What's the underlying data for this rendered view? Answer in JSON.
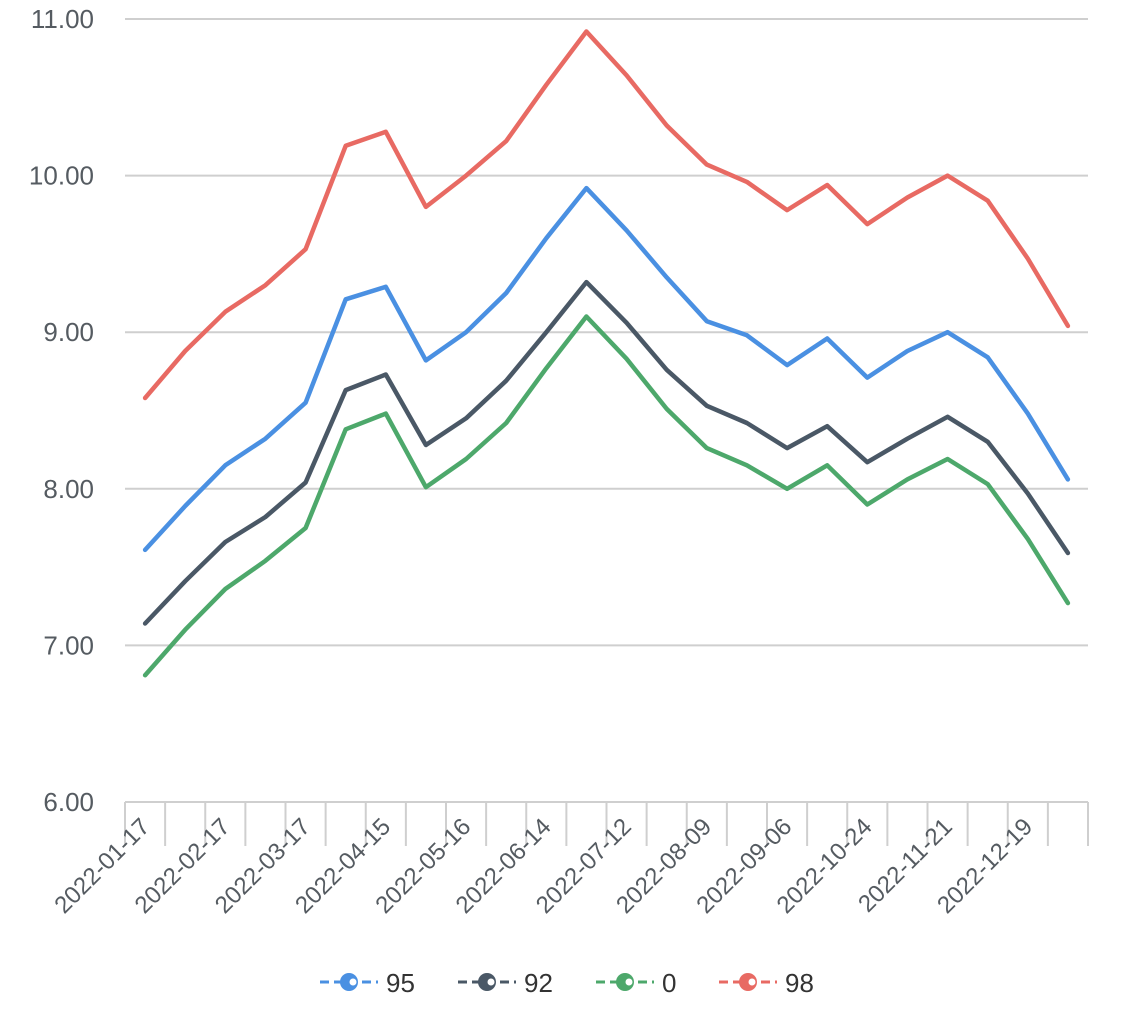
{
  "chart_data": {
    "type": "line",
    "x": [
      "2022-01-17",
      "",
      "2022-02-17",
      "",
      "2022-03-17",
      "",
      "2022-04-15",
      "",
      "2022-05-16",
      "",
      "2022-06-14",
      "",
      "2022-07-12",
      "",
      "2022-08-09",
      "",
      "2022-09-06",
      "",
      "2022-10-24",
      "",
      "2022-11-21",
      "",
      "2022-12-19",
      ""
    ],
    "x_tick_labels": [
      "2022-01-17",
      "2022-02-17",
      "2022-03-17",
      "2022-04-15",
      "2022-05-16",
      "2022-06-14",
      "2022-07-12",
      "2022-08-09",
      "2022-09-06",
      "2022-10-24",
      "2022-11-21",
      "2022-12-19"
    ],
    "y_ticks": [
      "6.00",
      "7.00",
      "8.00",
      "9.00",
      "10.00",
      "11.00"
    ],
    "ylim": [
      6,
      11
    ],
    "grid": true,
    "legend_position": "bottom",
    "series": [
      {
        "name": "95",
        "color": "#4a90e2",
        "values": [
          7.61,
          7.89,
          8.15,
          8.32,
          8.55,
          9.21,
          9.29,
          8.82,
          9.0,
          9.25,
          9.6,
          9.92,
          9.65,
          9.35,
          9.07,
          8.98,
          8.79,
          8.96,
          8.71,
          8.88,
          9.0,
          8.84,
          8.48,
          8.06
        ]
      },
      {
        "name": "92",
        "color": "#4a5866",
        "values": [
          7.14,
          7.41,
          7.66,
          7.82,
          8.04,
          8.63,
          8.73,
          8.28,
          8.45,
          8.69,
          9.0,
          9.32,
          9.06,
          8.76,
          8.53,
          8.42,
          8.26,
          8.4,
          8.17,
          8.32,
          8.46,
          8.3,
          7.97,
          7.59
        ]
      },
      {
        "name": "0",
        "color": "#4da86b",
        "values": [
          6.81,
          7.1,
          7.36,
          7.54,
          7.75,
          8.38,
          8.48,
          8.01,
          8.19,
          8.42,
          8.77,
          9.1,
          8.83,
          8.51,
          8.26,
          8.15,
          8.0,
          8.15,
          7.9,
          8.06,
          8.19,
          8.03,
          7.68,
          7.27
        ]
      },
      {
        "name": "98",
        "color": "#e86a63",
        "values": [
          8.58,
          8.88,
          9.13,
          9.3,
          9.53,
          10.19,
          10.28,
          9.8,
          10.0,
          10.22,
          10.58,
          10.92,
          10.64,
          10.32,
          10.07,
          9.96,
          9.78,
          9.94,
          9.69,
          9.86,
          10.0,
          9.84,
          9.47,
          9.04
        ]
      }
    ]
  }
}
